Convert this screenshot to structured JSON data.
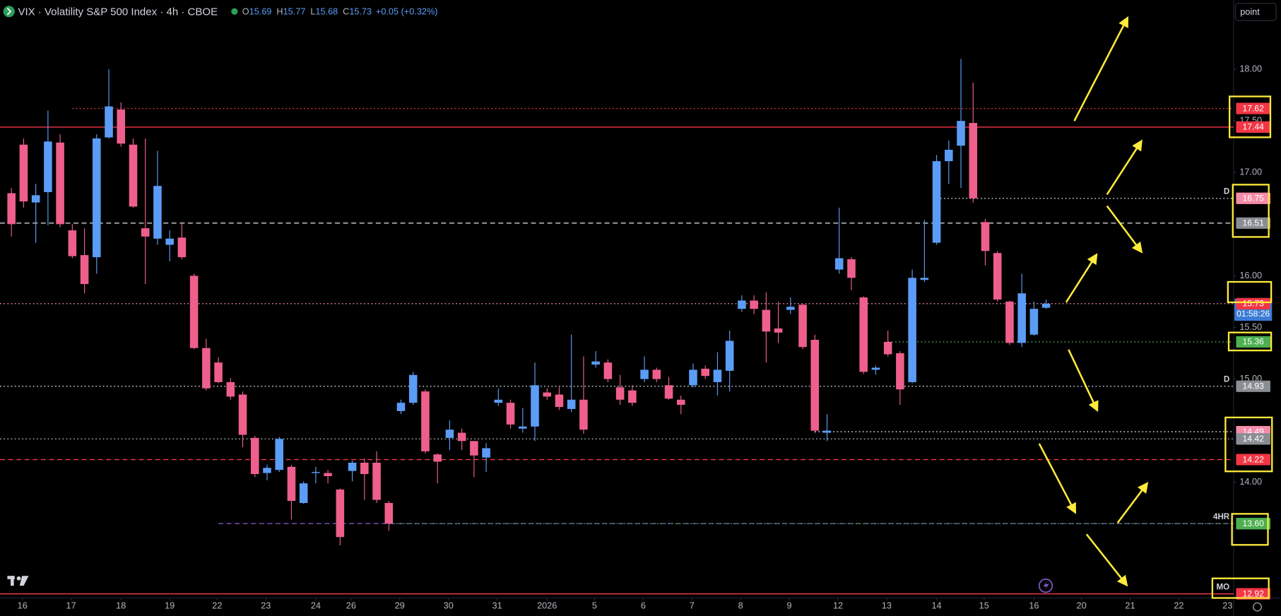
{
  "chart_data": {
    "type": "candlestick",
    "title": "VIX · Volatility S&P 500 Index · 4h · CBOE",
    "ohlc_labels": [
      "O",
      "H",
      "L",
      "C"
    ],
    "change": "+0.05 (+0.32%)",
    "mode_button": "point",
    "countdown": "01:58:26",
    "up_color": "#5b9cf6",
    "down_color": "#ee5f8c",
    "grid": false,
    "xlim": [
      -0.94,
      100.4
    ],
    "ylim": [
      12.88,
      18.67
    ],
    "yticks": [
      {
        "value": 18,
        "label": "18.00"
      },
      {
        "value": 17.5,
        "label": "17.50"
      },
      {
        "value": 17,
        "label": "17.00"
      },
      {
        "value": 16,
        "label": "16.00"
      },
      {
        "value": 15.5,
        "label": "15.50"
      },
      {
        "value": 15,
        "label": "15.00"
      },
      {
        "value": 14,
        "label": "14.00"
      }
    ],
    "xticks": [
      {
        "value": 0.9,
        "label": "16"
      },
      {
        "value": 4.9,
        "label": "17"
      },
      {
        "value": 9.0,
        "label": "18"
      },
      {
        "value": 13.0,
        "label": "19"
      },
      {
        "value": 16.9,
        "label": "22"
      },
      {
        "value": 20.9,
        "label": "23"
      },
      {
        "value": 25.0,
        "label": "24"
      },
      {
        "value": 27.9,
        "label": "26"
      },
      {
        "value": 31.9,
        "label": "29"
      },
      {
        "value": 35.9,
        "label": "30"
      },
      {
        "value": 39.9,
        "label": "31"
      },
      {
        "value": 44.0,
        "label": "2026"
      },
      {
        "value": 47.9,
        "label": "5"
      },
      {
        "value": 51.9,
        "label": "6"
      },
      {
        "value": 55.9,
        "label": "7"
      },
      {
        "value": 59.9,
        "label": "8"
      },
      {
        "value": 63.9,
        "label": "9"
      },
      {
        "value": 67.9,
        "label": "12"
      },
      {
        "value": 71.9,
        "label": "13"
      },
      {
        "value": 76.0,
        "label": "14"
      },
      {
        "value": 79.9,
        "label": "15"
      },
      {
        "value": 84.0,
        "label": "16"
      },
      {
        "value": 87.9,
        "label": "20"
      },
      {
        "value": 91.9,
        "label": "21"
      },
      {
        "value": 95.9,
        "label": "22"
      },
      {
        "value": 99.9,
        "label": "23"
      }
    ],
    "x": [
      0,
      1,
      2,
      3,
      4,
      5,
      6,
      7,
      8,
      9,
      10,
      11,
      12,
      13,
      14,
      15,
      16,
      17,
      18,
      19,
      20,
      21,
      22,
      23,
      24,
      25,
      26,
      27,
      28,
      29,
      30,
      31,
      32,
      33,
      34,
      35,
      36,
      37,
      38,
      39,
      40,
      41,
      42,
      43,
      44,
      45,
      46,
      47,
      48,
      49,
      50,
      51,
      52,
      53,
      54,
      55,
      56,
      57,
      58,
      59,
      60,
      61,
      62,
      63,
      64,
      65,
      66,
      67,
      68,
      69,
      70,
      71,
      72,
      73,
      74,
      75,
      76,
      77,
      78,
      79,
      80,
      81,
      82,
      83,
      84,
      85
    ],
    "open": [
      16.8,
      17.27,
      16.71,
      16.81,
      17.29,
      16.44,
      16.2,
      16.18,
      17.34,
      17.61,
      17.27,
      16.46,
      16.36,
      16.3,
      16.37,
      16.0,
      15.3,
      15.16,
      14.97,
      14.85,
      14.43,
      14.09,
      14.12,
      14.15,
      13.8,
      14.09,
      14.09,
      13.93,
      14.11,
      14.19,
      14.19,
      13.8,
      14.69,
      14.77,
      14.88,
      14.27,
      14.43,
      14.48,
      14.4,
      14.24,
      14.77,
      14.77,
      14.52,
      14.54,
      14.87,
      14.85,
      14.71,
      14.8,
      15.14,
      15.16,
      14.92,
      14.89,
      15.0,
      15.09,
      14.94,
      14.8,
      14.94,
      15.1,
      14.97,
      15.08,
      15.68,
      15.76,
      15.67,
      15.49,
      15.67,
      15.72,
      15.38,
      14.48,
      16.06,
      16.16,
      15.79,
      15.09,
      15.36,
      15.25,
      14.97,
      15.96,
      16.32,
      17.11,
      17.26,
      17.48,
      16.52,
      16.22,
      15.75,
      15.35,
      15.43,
      15.69
    ],
    "high": [
      16.85,
      17.33,
      16.89,
      17.6,
      17.37,
      16.5,
      16.46,
      17.37,
      18.0,
      17.68,
      17.33,
      17.33,
      17.21,
      16.44,
      16.52,
      16.02,
      15.39,
      15.21,
      15.01,
      14.88,
      14.45,
      14.17,
      14.44,
      14.17,
      14.01,
      14.15,
      14.12,
      13.94,
      14.21,
      14.23,
      14.3,
      13.82,
      14.8,
      15.07,
      14.9,
      14.28,
      14.6,
      14.52,
      14.4,
      14.38,
      14.91,
      14.8,
      14.72,
      15.16,
      14.91,
      14.92,
      15.43,
      15.22,
      15.27,
      15.19,
      15.04,
      14.94,
      15.22,
      15.11,
      15.02,
      14.84,
      15.15,
      15.13,
      15.26,
      15.47,
      15.81,
      15.81,
      15.84,
      15.75,
      15.79,
      15.73,
      15.43,
      14.66,
      16.66,
      16.18,
      15.8,
      15.13,
      15.47,
      15.27,
      16.06,
      16.54,
      17.17,
      17.31,
      18.1,
      17.87,
      16.55,
      16.24,
      15.76,
      16.02,
      15.75,
      15.77
    ],
    "low": [
      16.38,
      16.66,
      16.32,
      16.49,
      16.47,
      16.17,
      15.83,
      16.02,
      17.33,
      17.25,
      16.66,
      15.92,
      16.3,
      16.14,
      16.16,
      15.29,
      14.89,
      14.96,
      14.8,
      14.34,
      14.05,
      14.02,
      14.1,
      13.64,
      13.79,
      13.99,
      13.99,
      13.39,
      14.01,
      13.83,
      13.8,
      13.53,
      14.66,
      14.75,
      14.28,
      13.99,
      14.31,
      14.31,
      14.05,
      14.1,
      14.74,
      14.52,
      14.48,
      14.4,
      14.8,
      14.7,
      14.68,
      14.47,
      15.11,
      14.97,
      14.75,
      14.74,
      14.97,
      14.97,
      14.8,
      14.66,
      14.92,
      15.0,
      14.84,
      14.88,
      15.65,
      15.63,
      15.16,
      15.35,
      15.63,
      15.29,
      14.48,
      14.4,
      16.02,
      15.86,
      15.05,
      15.04,
      15.22,
      14.75,
      14.96,
      15.94,
      16.3,
      16.89,
      16.85,
      16.71,
      16.1,
      15.75,
      15.33,
      15.31,
      15.42,
      15.68
    ],
    "close": [
      16.5,
      16.72,
      16.78,
      17.3,
      16.5,
      16.19,
      15.92,
      17.33,
      17.64,
      17.28,
      16.67,
      16.38,
      16.87,
      16.36,
      16.18,
      15.3,
      14.91,
      14.97,
      14.83,
      14.46,
      14.08,
      14.14,
      14.42,
      13.82,
      13.99,
      14.1,
      14.06,
      13.47,
      14.19,
      14.08,
      13.83,
      13.6,
      14.77,
      15.04,
      14.3,
      14.2,
      14.51,
      14.4,
      14.26,
      14.33,
      14.8,
      14.56,
      14.54,
      14.94,
      14.83,
      14.73,
      14.8,
      14.51,
      15.17,
      15.0,
      14.8,
      14.77,
      15.09,
      15.0,
      14.81,
      14.75,
      15.09,
      15.03,
      15.09,
      15.37,
      15.76,
      15.68,
      15.46,
      15.45,
      15.7,
      15.31,
      14.5,
      14.5,
      16.17,
      15.98,
      15.07,
      15.11,
      15.24,
      14.9,
      15.98,
      15.98,
      17.11,
      17.22,
      17.5,
      16.75,
      16.24,
      15.77,
      15.35,
      15.83,
      15.68,
      15.73
    ],
    "levels": [
      {
        "value": 17.62,
        "label": "17.62",
        "color": "#f23645",
        "style": "dotted",
        "from": 5
      },
      {
        "value": 17.44,
        "label": "17.44",
        "color": "#f23645",
        "style": "solid"
      },
      {
        "value": 16.75,
        "label": "16.75",
        "color": "#f48ca8",
        "line_color": "#d1d4dc",
        "style": "dotted",
        "from": 76,
        "tag": "D"
      },
      {
        "value": 16.51,
        "label": "16.51",
        "color": "#8a8d94",
        "line_color": "#d1d4dc",
        "style": "dashed"
      },
      {
        "value": 15.73,
        "label": "15.73",
        "color": "#f23645",
        "line_color": "#f48ca8",
        "style": "dotted"
      },
      {
        "value": 15.36,
        "label": "15.36",
        "color": "#4caf50",
        "style": "dotted",
        "from": 72
      },
      {
        "value": 14.93,
        "label": "14.93",
        "color": "#8a8d94",
        "line_color": "#d1d4dc",
        "style": "dotted",
        "tag": "D"
      },
      {
        "value": 14.49,
        "label": "14.49",
        "color": "#f48ca8",
        "line_color": "#d1d4dc",
        "style": "dotted",
        "from": 66
      },
      {
        "value": 14.42,
        "label": "14.42",
        "color": "#8a8d94",
        "line_color": "#b2b5be",
        "style": "dotted"
      },
      {
        "value": 14.22,
        "label": "14.22",
        "color": "#f23645",
        "style": "dashed"
      },
      {
        "value": 13.6,
        "label": "13.60",
        "color": "#7e57c2",
        "style": "dashed",
        "from": 17,
        "tag": "4HR"
      },
      {
        "value": 13.6,
        "label": "13.60",
        "color": "#4caf50",
        "style": "dotted",
        "from": 31
      },
      {
        "value": 12.92,
        "label": "12.92",
        "color": "#f23645",
        "style": "solid",
        "tag": "MO"
      }
    ]
  }
}
